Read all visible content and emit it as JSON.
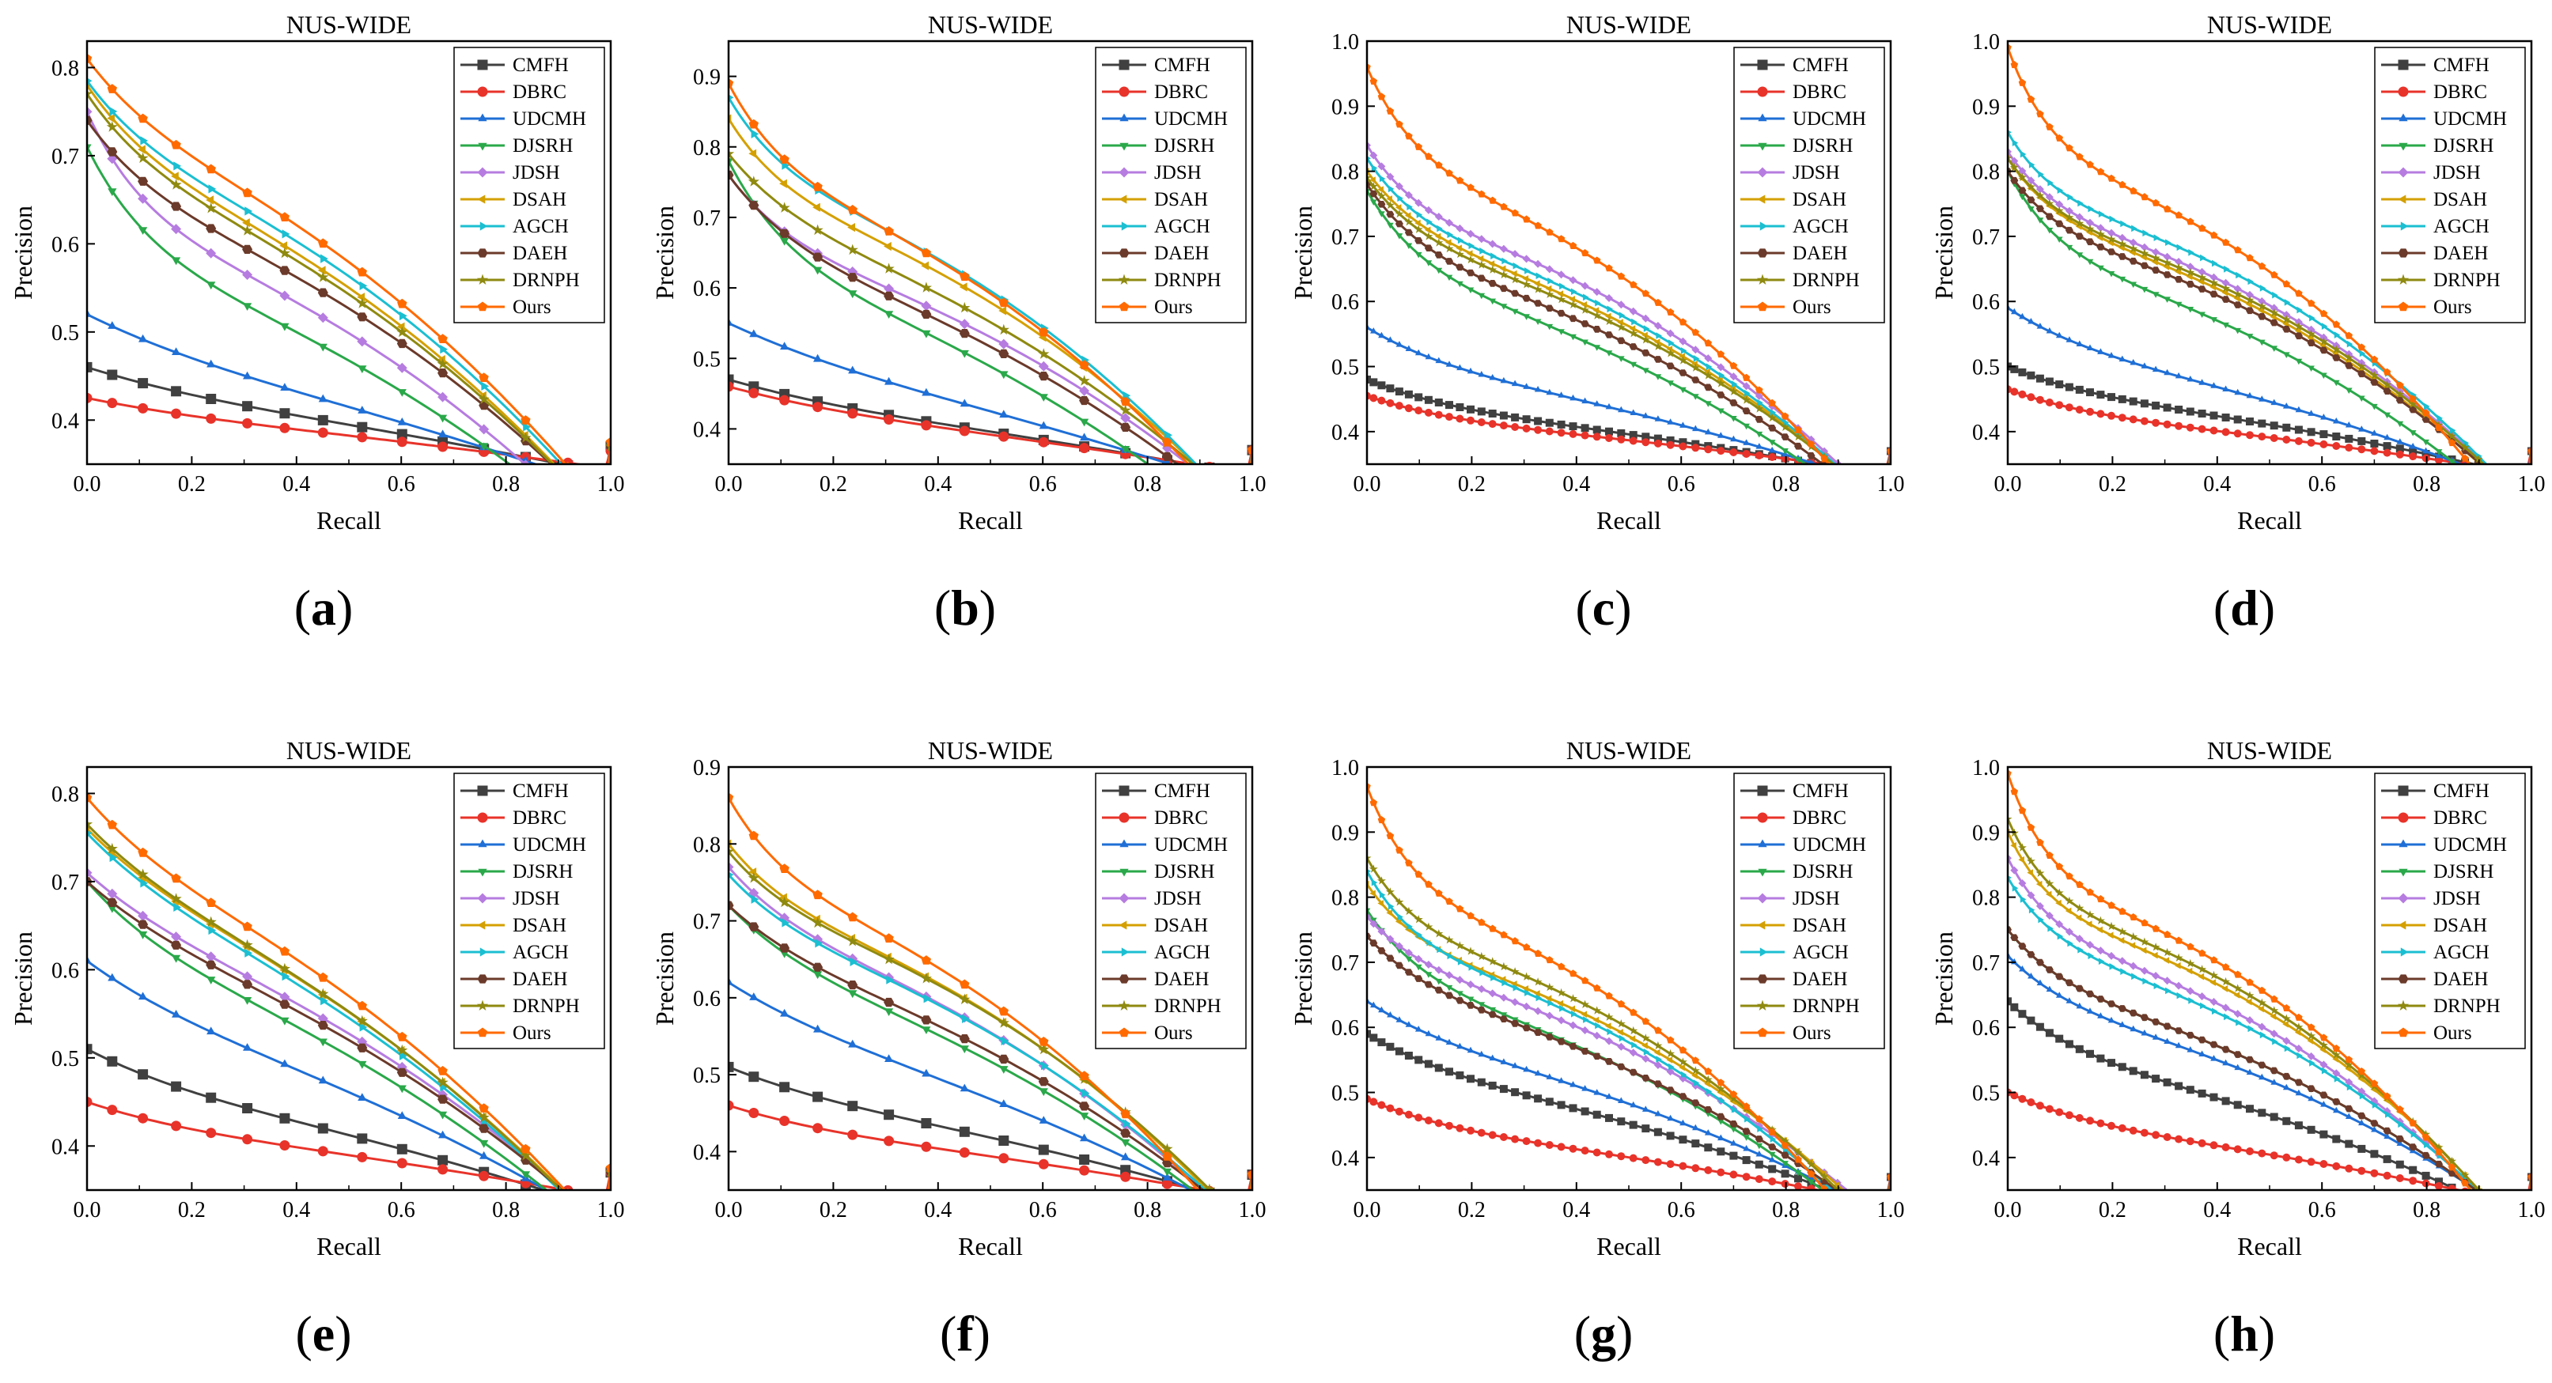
{
  "figure": {
    "colors": {
      "CMFH": "#404040",
      "DBRC": "#e8332a",
      "UDCMH": "#1f6fd6",
      "DJSRH": "#2aa84a",
      "JDSH": "#b67ce0",
      "DSAH": "#d4a000",
      "AGCH": "#1bbfd1",
      "DAEH": "#6b3a2a",
      "DRNPH": "#8f8a10",
      "Ours": "#ff6a00"
    },
    "markers": {
      "CMFH": "square",
      "DBRC": "circle",
      "UDCMH": "triangle-up",
      "DJSRH": "triangle-down",
      "JDSH": "diamond",
      "DSAH": "triangle-left",
      "AGCH": "triangle-right",
      "DAEH": "hexagon",
      "DRNPH": "star",
      "Ours": "pentagon"
    }
  },
  "chart_data": [
    {
      "type": "line",
      "panel_label": "(a)",
      "title": "NUS-WIDE",
      "xlabel": "Recall",
      "ylabel": "Precision",
      "xlim": [
        0,
        1
      ],
      "ylim": [
        0.35,
        0.83
      ],
      "xticks": [
        "0.0",
        "0.2",
        "0.4",
        "0.6",
        "0.8",
        "1.0"
      ],
      "yticks": [
        "0.4",
        "0.5",
        "0.6",
        "0.7",
        "0.8"
      ],
      "legend": [
        "CMFH",
        "DBRC",
        "UDCMH",
        "DJSRH",
        "JDSH",
        "DSAH",
        "AGCH",
        "DAEH",
        "DRNPH",
        "Ours"
      ],
      "series": [
        {
          "name": "CMFH",
          "start": 0.46,
          "end": 0.37,
          "k": 1.0,
          "mid": 0.39
        },
        {
          "name": "DBRC",
          "start": 0.425,
          "end": 0.365,
          "k": 1.0,
          "mid": 0.38
        },
        {
          "name": "UDCMH",
          "start": 0.52,
          "end": 0.37,
          "k": 1.0,
          "mid": 0.41
        },
        {
          "name": "DJSRH",
          "start": 0.71,
          "end": 0.37,
          "k": 2.0,
          "mid": 0.46
        },
        {
          "name": "JDSH",
          "start": 0.75,
          "end": 0.37,
          "k": 2.2,
          "mid": 0.5
        },
        {
          "name": "DSAH",
          "start": 0.78,
          "end": 0.37,
          "k": 1.8,
          "mid": 0.58
        },
        {
          "name": "AGCH",
          "start": 0.785,
          "end": 0.37,
          "k": 1.8,
          "mid": 0.6
        },
        {
          "name": "DAEH",
          "start": 0.74,
          "end": 0.37,
          "k": 1.8,
          "mid": 0.55
        },
        {
          "name": "DRNPH",
          "start": 0.77,
          "end": 0.37,
          "k": 1.8,
          "mid": 0.57
        },
        {
          "name": "Ours",
          "start": 0.81,
          "end": 0.375,
          "k": 1.7,
          "mid": 0.62
        }
      ]
    },
    {
      "type": "line",
      "panel_label": "(b)",
      "title": "NUS-WIDE",
      "xlabel": "Recall",
      "ylabel": "Precision",
      "xlim": [
        0,
        1
      ],
      "ylim": [
        0.35,
        0.95
      ],
      "xticks": [
        "0.0",
        "0.2",
        "0.4",
        "0.6",
        "0.8",
        "1.0"
      ],
      "yticks": [
        "0.4",
        "0.5",
        "0.6",
        "0.7",
        "0.8",
        "0.9"
      ],
      "legend": [
        "CMFH",
        "DBRC",
        "UDCMH",
        "DJSRH",
        "JDSH",
        "DSAH",
        "AGCH",
        "DAEH",
        "DRNPH",
        "Ours"
      ],
      "series": [
        {
          "name": "CMFH",
          "start": 0.47,
          "end": 0.37,
          "k": 1.0,
          "mid": 0.39
        },
        {
          "name": "DBRC",
          "start": 0.46,
          "end": 0.37,
          "k": 1.0,
          "mid": 0.385
        },
        {
          "name": "UDCMH",
          "start": 0.55,
          "end": 0.37,
          "k": 1.0,
          "mid": 0.42
        },
        {
          "name": "DJSRH",
          "start": 0.78,
          "end": 0.37,
          "k": 2.0,
          "mid": 0.48
        },
        {
          "name": "JDSH",
          "start": 0.76,
          "end": 0.37,
          "k": 2.0,
          "mid": 0.55
        },
        {
          "name": "DSAH",
          "start": 0.84,
          "end": 0.37,
          "k": 2.2,
          "mid": 0.61
        },
        {
          "name": "AGCH",
          "start": 0.87,
          "end": 0.37,
          "k": 2.2,
          "mid": 0.63
        },
        {
          "name": "DAEH",
          "start": 0.76,
          "end": 0.37,
          "k": 1.8,
          "mid": 0.53
        },
        {
          "name": "DRNPH",
          "start": 0.79,
          "end": 0.37,
          "k": 1.8,
          "mid": 0.58
        },
        {
          "name": "Ours",
          "start": 0.89,
          "end": 0.37,
          "k": 2.2,
          "mid": 0.62
        }
      ]
    },
    {
      "type": "line",
      "panel_label": "(c)",
      "title": "NUS-WIDE",
      "xlabel": "Recall",
      "ylabel": "Precision",
      "xlim": [
        0,
        1
      ],
      "ylim": [
        0.35,
        1.0
      ],
      "xticks": [
        "0.0",
        "0.2",
        "0.4",
        "0.6",
        "0.8",
        "1.0"
      ],
      "yticks": [
        "0.4",
        "0.5",
        "0.6",
        "0.7",
        "0.8",
        "0.9",
        "1.0"
      ],
      "legend": [
        "CMFH",
        "DBRC",
        "UDCMH",
        "DJSRH",
        "JDSH",
        "DSAH",
        "AGCH",
        "DAEH",
        "DRNPH",
        "Ours"
      ],
      "series": [
        {
          "name": "CMFH",
          "start": 0.48,
          "end": 0.37,
          "k": 1.5,
          "mid": 0.39
        },
        {
          "name": "DBRC",
          "start": 0.455,
          "end": 0.37,
          "k": 1.5,
          "mid": 0.38
        },
        {
          "name": "UDCMH",
          "start": 0.56,
          "end": 0.37,
          "k": 1.5,
          "mid": 0.43
        },
        {
          "name": "DJSRH",
          "start": 0.77,
          "end": 0.37,
          "k": 2.2,
          "mid": 0.51
        },
        {
          "name": "JDSH",
          "start": 0.84,
          "end": 0.37,
          "k": 2.5,
          "mid": 0.62
        },
        {
          "name": "DSAH",
          "start": 0.8,
          "end": 0.37,
          "k": 2.2,
          "mid": 0.59
        },
        {
          "name": "AGCH",
          "start": 0.82,
          "end": 0.37,
          "k": 2.4,
          "mid": 0.6
        },
        {
          "name": "DAEH",
          "start": 0.78,
          "end": 0.37,
          "k": 2.2,
          "mid": 0.55
        },
        {
          "name": "DRNPH",
          "start": 0.79,
          "end": 0.37,
          "k": 2.2,
          "mid": 0.58
        },
        {
          "name": "Ours",
          "start": 0.96,
          "end": 0.37,
          "k": 2.6,
          "mid": 0.66
        }
      ]
    },
    {
      "type": "line",
      "panel_label": "(d)",
      "title": "NUS-WIDE",
      "xlabel": "Recall",
      "ylabel": "Precision",
      "xlim": [
        0,
        1
      ],
      "ylim": [
        0.35,
        1.0
      ],
      "xticks": [
        "0.0",
        "0.2",
        "0.4",
        "0.6",
        "0.8",
        "1.0"
      ],
      "yticks": [
        "0.4",
        "0.5",
        "0.6",
        "0.7",
        "0.8",
        "0.9",
        "1.0"
      ],
      "legend": [
        "CMFH",
        "DBRC",
        "UDCMH",
        "DJSRH",
        "JDSH",
        "DSAH",
        "AGCH",
        "DAEH",
        "DRNPH",
        "Ours"
      ],
      "series": [
        {
          "name": "CMFH",
          "start": 0.5,
          "end": 0.37,
          "k": 1.5,
          "mid": 0.41
        },
        {
          "name": "DBRC",
          "start": 0.465,
          "end": 0.37,
          "k": 1.5,
          "mid": 0.385
        },
        {
          "name": "UDCMH",
          "start": 0.59,
          "end": 0.37,
          "k": 1.5,
          "mid": 0.45
        },
        {
          "name": "DJSRH",
          "start": 0.8,
          "end": 0.37,
          "k": 2.5,
          "mid": 0.54
        },
        {
          "name": "JDSH",
          "start": 0.83,
          "end": 0.37,
          "k": 2.5,
          "mid": 0.63
        },
        {
          "name": "DSAH",
          "start": 0.82,
          "end": 0.37,
          "k": 2.5,
          "mid": 0.61
        },
        {
          "name": "AGCH",
          "start": 0.86,
          "end": 0.37,
          "k": 2.8,
          "mid": 0.65
        },
        {
          "name": "DAEH",
          "start": 0.8,
          "end": 0.37,
          "k": 2.5,
          "mid": 0.6
        },
        {
          "name": "DRNPH",
          "start": 0.82,
          "end": 0.37,
          "k": 2.5,
          "mid": 0.62
        },
        {
          "name": "Ours",
          "start": 0.99,
          "end": 0.37,
          "k": 3.0,
          "mid": 0.67
        }
      ]
    },
    {
      "type": "line",
      "panel_label": "(e)",
      "title": "NUS-WIDE",
      "xlabel": "Recall",
      "ylabel": "Precision",
      "xlim": [
        0,
        1
      ],
      "ylim": [
        0.35,
        0.83
      ],
      "xticks": [
        "0.0",
        "0.2",
        "0.4",
        "0.6",
        "0.8",
        "1.0"
      ],
      "yticks": [
        "0.4",
        "0.5",
        "0.6",
        "0.7",
        "0.8"
      ],
      "legend": [
        "CMFH",
        "DBRC",
        "UDCMH",
        "DJSRH",
        "JDSH",
        "DSAH",
        "AGCH",
        "DAEH",
        "DRNPH",
        "Ours"
      ],
      "series": [
        {
          "name": "CMFH",
          "start": 0.51,
          "end": 0.37,
          "k": 1.2,
          "mid": 0.41
        },
        {
          "name": "DBRC",
          "start": 0.45,
          "end": 0.37,
          "k": 1.2,
          "mid": 0.385
        },
        {
          "name": "UDCMH",
          "start": 0.61,
          "end": 0.37,
          "k": 1.2,
          "mid": 0.47
        },
        {
          "name": "DJSRH",
          "start": 0.7,
          "end": 0.37,
          "k": 1.5,
          "mid": 0.52
        },
        {
          "name": "JDSH",
          "start": 0.71,
          "end": 0.37,
          "k": 1.4,
          "mid": 0.56
        },
        {
          "name": "DSAH",
          "start": 0.76,
          "end": 0.37,
          "k": 1.4,
          "mid": 0.59
        },
        {
          "name": "AGCH",
          "start": 0.755,
          "end": 0.37,
          "k": 1.4,
          "mid": 0.58
        },
        {
          "name": "DAEH",
          "start": 0.7,
          "end": 0.37,
          "k": 1.4,
          "mid": 0.55
        },
        {
          "name": "DRNPH",
          "start": 0.765,
          "end": 0.37,
          "k": 1.4,
          "mid": 0.59
        },
        {
          "name": "Ours",
          "start": 0.795,
          "end": 0.375,
          "k": 1.5,
          "mid": 0.61
        }
      ]
    },
    {
      "type": "line",
      "panel_label": "(f)",
      "title": "NUS-WIDE",
      "xlabel": "Recall",
      "ylabel": "Precision",
      "xlim": [
        0,
        1
      ],
      "ylim": [
        0.35,
        0.9
      ],
      "xticks": [
        "0.0",
        "0.2",
        "0.4",
        "0.6",
        "0.8",
        "1.0"
      ],
      "yticks": [
        "0.4",
        "0.5",
        "0.6",
        "0.7",
        "0.8",
        "0.9"
      ],
      "legend": [
        "CMFH",
        "DBRC",
        "UDCMH",
        "DJSRH",
        "JDSH",
        "DSAH",
        "AGCH",
        "DAEH",
        "DRNPH",
        "Ours"
      ],
      "series": [
        {
          "name": "CMFH",
          "start": 0.51,
          "end": 0.37,
          "k": 1.2,
          "mid": 0.42
        },
        {
          "name": "DBRC",
          "start": 0.46,
          "end": 0.37,
          "k": 1.2,
          "mid": 0.39
        },
        {
          "name": "UDCMH",
          "start": 0.62,
          "end": 0.37,
          "k": 1.2,
          "mid": 0.48
        },
        {
          "name": "DJSRH",
          "start": 0.72,
          "end": 0.37,
          "k": 1.6,
          "mid": 0.54
        },
        {
          "name": "JDSH",
          "start": 0.77,
          "end": 0.37,
          "k": 1.8,
          "mid": 0.59
        },
        {
          "name": "DSAH",
          "start": 0.8,
          "end": 0.37,
          "k": 2.0,
          "mid": 0.62
        },
        {
          "name": "AGCH",
          "start": 0.76,
          "end": 0.37,
          "k": 1.8,
          "mid": 0.59
        },
        {
          "name": "DAEH",
          "start": 0.72,
          "end": 0.37,
          "k": 1.6,
          "mid": 0.56
        },
        {
          "name": "DRNPH",
          "start": 0.79,
          "end": 0.37,
          "k": 2.0,
          "mid": 0.62
        },
        {
          "name": "Ours",
          "start": 0.86,
          "end": 0.37,
          "k": 2.2,
          "mid": 0.63
        }
      ]
    },
    {
      "type": "line",
      "panel_label": "(g)",
      "title": "NUS-WIDE",
      "xlabel": "Recall",
      "ylabel": "Precision",
      "xlim": [
        0,
        1
      ],
      "ylim": [
        0.35,
        1.0
      ],
      "xticks": [
        "0.0",
        "0.2",
        "0.4",
        "0.6",
        "0.8",
        "1.0"
      ],
      "yticks": [
        "0.4",
        "0.5",
        "0.6",
        "0.7",
        "0.8",
        "0.9",
        "1.0"
      ],
      "legend": [
        "CMFH",
        "DBRC",
        "UDCMH",
        "DJSRH",
        "JDSH",
        "DSAH",
        "AGCH",
        "DAEH",
        "DRNPH",
        "Ours"
      ],
      "series": [
        {
          "name": "CMFH",
          "start": 0.59,
          "end": 0.37,
          "k": 1.5,
          "mid": 0.46
        },
        {
          "name": "DBRC",
          "start": 0.49,
          "end": 0.37,
          "k": 1.5,
          "mid": 0.395
        },
        {
          "name": "UDCMH",
          "start": 0.64,
          "end": 0.37,
          "k": 1.5,
          "mid": 0.5
        },
        {
          "name": "DJSRH",
          "start": 0.78,
          "end": 0.37,
          "k": 2.2,
          "mid": 0.55
        },
        {
          "name": "JDSH",
          "start": 0.77,
          "end": 0.37,
          "k": 2.2,
          "mid": 0.6
        },
        {
          "name": "DSAH",
          "start": 0.82,
          "end": 0.37,
          "k": 2.5,
          "mid": 0.62
        },
        {
          "name": "AGCH",
          "start": 0.84,
          "end": 0.37,
          "k": 2.6,
          "mid": 0.6
        },
        {
          "name": "DAEH",
          "start": 0.74,
          "end": 0.37,
          "k": 2.0,
          "mid": 0.56
        },
        {
          "name": "DRNPH",
          "start": 0.86,
          "end": 0.37,
          "k": 2.6,
          "mid": 0.63
        },
        {
          "name": "Ours",
          "start": 0.97,
          "end": 0.37,
          "k": 2.8,
          "mid": 0.65
        }
      ]
    },
    {
      "type": "line",
      "panel_label": "(h)",
      "title": "NUS-WIDE",
      "xlabel": "Recall",
      "ylabel": "Precision",
      "xlim": [
        0,
        1
      ],
      "ylim": [
        0.35,
        1.0
      ],
      "xticks": [
        "0.0",
        "0.2",
        "0.4",
        "0.6",
        "0.8",
        "1.0"
      ],
      "yticks": [
        "0.4",
        "0.5",
        "0.6",
        "0.7",
        "0.8",
        "0.9",
        "1.0"
      ],
      "legend": [
        "CMFH",
        "DBRC",
        "UDCMH",
        "DJSRH",
        "JDSH",
        "DSAH",
        "AGCH",
        "DAEH",
        "DRNPH",
        "Ours"
      ],
      "series": [
        {
          "name": "CMFH",
          "start": 0.64,
          "end": 0.37,
          "k": 1.8,
          "mid": 0.47
        },
        {
          "name": "DBRC",
          "start": 0.5,
          "end": 0.37,
          "k": 1.5,
          "mid": 0.4
        },
        {
          "name": "UDCMH",
          "start": 0.71,
          "end": 0.37,
          "k": 2.0,
          "mid": 0.54
        },
        {
          "name": "DJSRH",
          "start": 0.75,
          "end": 0.37,
          "k": 2.2,
          "mid": 0.56
        },
        {
          "name": "JDSH",
          "start": 0.86,
          "end": 0.37,
          "k": 2.8,
          "mid": 0.62
        },
        {
          "name": "DSAH",
          "start": 0.9,
          "end": 0.37,
          "k": 3.0,
          "mid": 0.65
        },
        {
          "name": "AGCH",
          "start": 0.83,
          "end": 0.37,
          "k": 2.6,
          "mid": 0.61
        },
        {
          "name": "DAEH",
          "start": 0.75,
          "end": 0.37,
          "k": 2.2,
          "mid": 0.56
        },
        {
          "name": "DRNPH",
          "start": 0.92,
          "end": 0.37,
          "k": 3.0,
          "mid": 0.66
        },
        {
          "name": "Ours",
          "start": 0.99,
          "end": 0.37,
          "k": 3.2,
          "mid": 0.67
        }
      ]
    }
  ]
}
